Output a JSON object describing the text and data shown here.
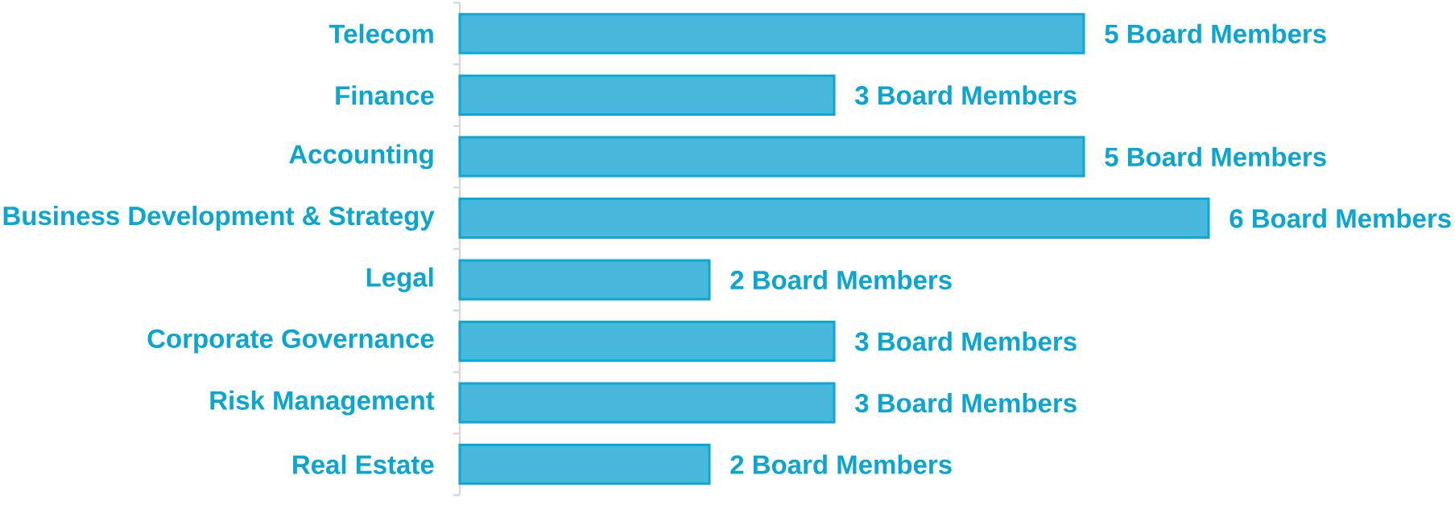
{
  "chart_data": {
    "type": "bar",
    "orientation": "horizontal",
    "categories": [
      "Telecom",
      "Finance",
      "Accounting",
      "Business Development & Strategy",
      "Legal",
      "Corporate Governance",
      "Risk Management",
      "Real Estate"
    ],
    "values": [
      5,
      3,
      5,
      6,
      2,
      3,
      3,
      2
    ],
    "value_labels": [
      "5 Board Members",
      "3 Board Members",
      "5 Board Members",
      "6 Board Members",
      "2 Board Members",
      "3 Board Members",
      "3 Board Members",
      "2 Board Members"
    ],
    "color": "#47b8db",
    "xlim": [
      0,
      6
    ],
    "tick_labels": "y"
  }
}
